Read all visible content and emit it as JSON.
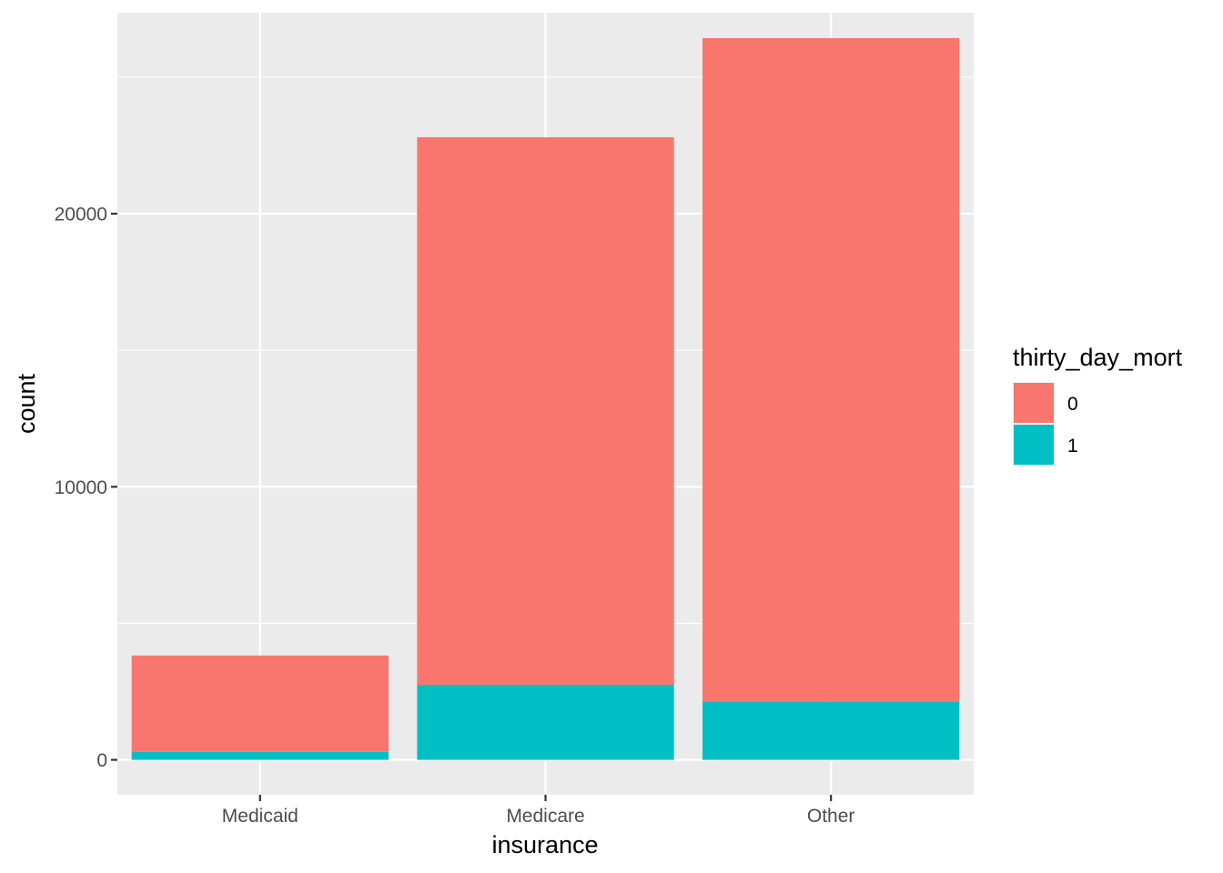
{
  "chart_data": {
    "type": "bar",
    "stacked": true,
    "categories": [
      "Medicaid",
      "Medicare",
      "Other"
    ],
    "series": [
      {
        "name": "0",
        "values": [
          3530,
          20050,
          24290
        ],
        "color": "#F8766D"
      },
      {
        "name": "1",
        "values": [
          290,
          2750,
          2140
        ],
        "color": "#00BFC4"
      }
    ],
    "xlabel": "insurance",
    "ylabel": "count",
    "ylim": [
      -1280,
      27360
    ],
    "yticks": [
      0,
      10000,
      20000
    ],
    "yticks_minor": [
      5000,
      15000,
      25000
    ],
    "legend": {
      "title": "thirty_day_mort",
      "placement": "right"
    },
    "panel_background": "#EBEBEB",
    "grid_color": "#FFFFFF",
    "grid": true
  }
}
